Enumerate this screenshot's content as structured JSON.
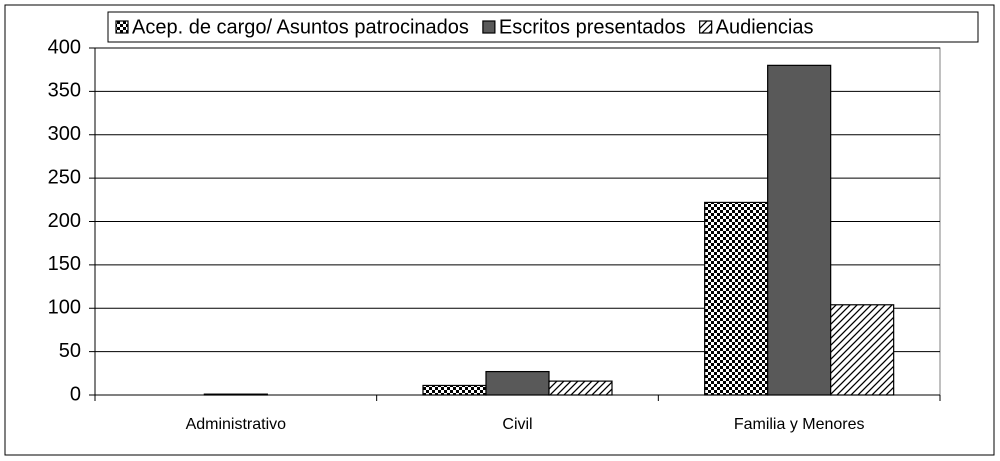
{
  "chart_data": {
    "type": "bar",
    "categories": [
      "Administrativo",
      "Civil",
      "Familia y Menores"
    ],
    "series": [
      {
        "name": "Acep. de cargo/ Asuntos patrocinados",
        "color": "#000000",
        "pattern": "checker",
        "values": [
          0,
          11,
          222
        ]
      },
      {
        "name": "Escritos presentados",
        "color": "#595959",
        "pattern": "solid",
        "values": [
          1,
          27,
          380
        ]
      },
      {
        "name": "Audiencias",
        "color": "#000000",
        "pattern": "diagonal",
        "values": [
          0,
          16,
          104
        ]
      }
    ],
    "ylim": [
      0,
      400
    ],
    "yticks": [
      0,
      50,
      100,
      150,
      200,
      250,
      300,
      350,
      400
    ],
    "grid": true,
    "legend": "top"
  }
}
